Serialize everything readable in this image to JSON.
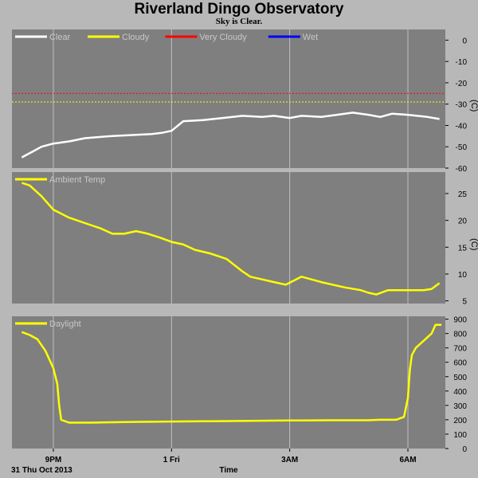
{
  "title": "Riverland Dingo Observatory",
  "subtitle": "Sky is Clear.",
  "date_label": "31 Thu Oct 2013",
  "x_axis_title": "Time",
  "colors": {
    "panel_bg": "#7f7f7f",
    "page_bg": "#b8b8b8",
    "grid": "#c0c0c0",
    "clear": "#ffffff",
    "cloudy": "#ffff00",
    "very_cloudy": "#ff0000",
    "wet": "#0000ff",
    "temp": "#ffff00",
    "daylight": "#ffff00"
  },
  "chart_data": [
    {
      "type": "line",
      "panel": "sky",
      "legend": [
        "Clear",
        "Cloudy",
        "Very Cloudy",
        "Wet"
      ],
      "legend_colors": [
        "#ffffff",
        "#ffff00",
        "#ff0000",
        "#0000ff"
      ],
      "ylabel": "(C)",
      "ylim": [
        -60,
        5
      ],
      "yticks": [
        "0",
        "-10",
        "-20",
        "-30",
        "-40",
        "-50",
        "-60"
      ],
      "ytick_values": [
        0,
        -10,
        -20,
        -30,
        -40,
        -50,
        -60
      ],
      "thresholds": [
        {
          "name": "Cloudy",
          "value": -29,
          "color": "#ffff00"
        },
        {
          "name": "Very Cloudy",
          "value": -25,
          "color": "#ff0000"
        }
      ],
      "series": [
        {
          "name": "Clear",
          "color": "#ffffff",
          "x": [
            -3.8,
            -3.7,
            -3.5,
            -3.3,
            -3.0,
            -2.6,
            -2.2,
            -1.9,
            -1.5,
            -1.0,
            -0.5,
            -0.25,
            0,
            0.3,
            0.8,
            1.3,
            1.8,
            2.3,
            2.6,
            3.0,
            3.3,
            3.8,
            4.2,
            4.6,
            5.0,
            5.3,
            5.6,
            6.0,
            6.5,
            6.8
          ],
          "y": [
            -55,
            -54,
            -52,
            -50,
            -48.5,
            -47.5,
            -46,
            -45.5,
            -45,
            -44.5,
            -44,
            -43.5,
            -42.5,
            -38,
            -37.5,
            -36.5,
            -35.5,
            -36,
            -35.5,
            -36.5,
            -35.5,
            -36,
            -35,
            -34,
            -35,
            -36,
            -34.5,
            -35,
            -36,
            -37
          ]
        }
      ]
    },
    {
      "type": "line",
      "panel": "temperature",
      "legend": [
        "Ambient Temp"
      ],
      "legend_colors": [
        "#ffff00"
      ],
      "ylabel": "(C)",
      "ylim": [
        4.5,
        29
      ],
      "yticks": [
        "25",
        "20",
        "15",
        "10",
        "5"
      ],
      "ytick_values": [
        25,
        20,
        15,
        10,
        5
      ],
      "series": [
        {
          "name": "Ambient Temp",
          "color": "#ffff00",
          "x": [
            -3.8,
            -3.6,
            -3.3,
            -3.0,
            -2.6,
            -2.2,
            -1.8,
            -1.5,
            -1.2,
            -0.9,
            -0.6,
            -0.3,
            0,
            0.3,
            0.6,
            1.0,
            1.4,
            1.8,
            2.0,
            2.3,
            2.6,
            2.9,
            3.3,
            3.8,
            4.4,
            4.8,
            5.0,
            5.2,
            5.5,
            6.0,
            6.4,
            6.6,
            6.8
          ],
          "y": [
            27,
            26.5,
            24.5,
            22,
            20.5,
            19.5,
            18.5,
            17.5,
            17.5,
            18,
            17.5,
            16.8,
            16,
            15.5,
            14.5,
            13.8,
            12.8,
            10.5,
            9.5,
            9,
            8.5,
            8,
            9.5,
            8.5,
            7.5,
            7,
            6.5,
            6.2,
            7,
            7,
            7,
            7.2,
            8.3
          ]
        }
      ]
    },
    {
      "type": "line",
      "panel": "daylight",
      "legend": [
        "Daylight"
      ],
      "legend_colors": [
        "#ffff00"
      ],
      "ylim": [
        0,
        920
      ],
      "yticks": [
        "900",
        "800",
        "700",
        "600",
        "500",
        "400",
        "300",
        "200",
        "100",
        "0"
      ],
      "ytick_values": [
        900,
        800,
        700,
        600,
        500,
        400,
        300,
        200,
        100,
        0
      ],
      "xticks": [
        "9PM",
        "1 Fri",
        "3AM",
        "6AM"
      ],
      "xtick_values": [
        -3,
        0,
        3,
        6
      ],
      "xlim": [
        -4.05,
        6.95
      ],
      "series": [
        {
          "name": "Daylight",
          "color": "#ffff00",
          "x": [
            -3.8,
            -3.6,
            -3.4,
            -3.2,
            -3.0,
            -2.9,
            -2.85,
            -2.8,
            -2.6,
            -2.0,
            -1.0,
            0,
            1.0,
            2.0,
            3.0,
            4.0,
            5.0,
            5.3,
            5.7,
            5.9,
            6.0,
            6.05,
            6.1,
            6.2,
            6.4,
            6.6,
            6.7,
            6.85
          ],
          "y": [
            810,
            790,
            760,
            680,
            560,
            450,
            300,
            200,
            180,
            180,
            185,
            188,
            190,
            193,
            195,
            197,
            197,
            200,
            200,
            220,
            350,
            550,
            650,
            700,
            750,
            800,
            860,
            860
          ]
        }
      ]
    }
  ]
}
